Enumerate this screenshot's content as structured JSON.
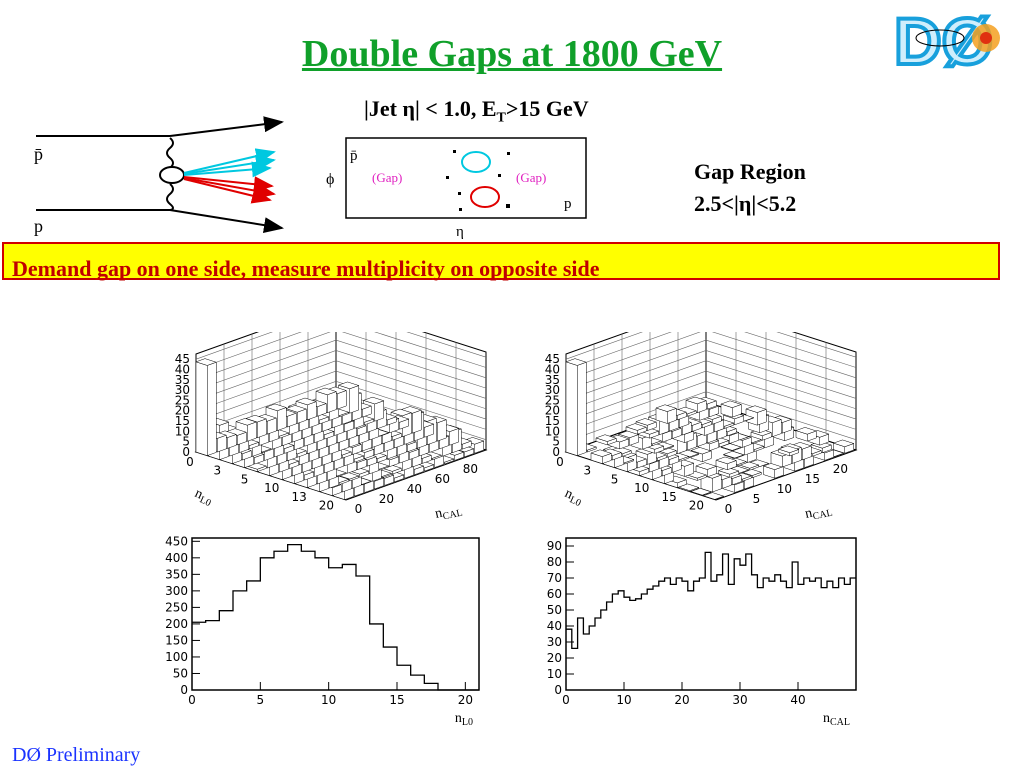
{
  "title": "Double Gaps at 1800 GeV",
  "subtitle": {
    "pre": "|Jet ",
    "eta": "η",
    "mid": "| < 1.0, E",
    "sub": "T",
    "post": ">15 GeV"
  },
  "gap_region": {
    "line1": "Gap Region",
    "line2": "2.5<|η|<5.2"
  },
  "banner": "Demand gap on one side,  measure multiplicity on opposite side",
  "preliminary": "DØ Preliminary",
  "logo": "DØ",
  "feynman": {
    "pbar": "p̄",
    "p": "p"
  },
  "phi_eta": {
    "phi": "ϕ",
    "eta": "η",
    "pbar": "p̄",
    "p": "p",
    "gap_left": "(Gap)",
    "gap_right": "(Gap)",
    "jet_top_color": "#00c8e0",
    "jet_bottom_color": "#e00000"
  },
  "colors": {
    "title": "#10a02a",
    "banner_bg": "#ffff00",
    "banner_border": "#d00000",
    "banner_text": "#c00000",
    "preliminary": "#1a33ff",
    "arrow_cyan": "#00c8e0",
    "arrow_red": "#e00000"
  },
  "chart_data": [
    {
      "type": "lego3d",
      "z_ticks": [
        "0",
        "5",
        "10",
        "15",
        "20",
        "25",
        "30",
        "35",
        "40",
        "45"
      ],
      "x_label": "nL0",
      "x_label_sub": "L0",
      "x_label_main": "n",
      "x_ticks": [
        "0",
        "3",
        "5",
        "10",
        "13",
        "20"
      ],
      "y_label_main": "n",
      "y_label_sub": "CAL",
      "y_ticks": [
        "0",
        "20",
        "40",
        "60",
        "80"
      ]
    },
    {
      "type": "lego3d",
      "z_ticks": [
        "0",
        "5",
        "10",
        "15",
        "20",
        "25",
        "30",
        "35",
        "40",
        "45"
      ],
      "x_label_main": "n",
      "x_label_sub": "L0",
      "x_ticks": [
        "0",
        "3",
        "5",
        "10",
        "15",
        "20"
      ],
      "y_label_main": "n",
      "y_label_sub": "CAL",
      "y_ticks": [
        "0",
        "5",
        "10",
        "15",
        "20"
      ]
    },
    {
      "type": "histogram",
      "x_label_main": "n",
      "x_label_sub": "L0",
      "xlim": [
        0,
        21
      ],
      "ylim": [
        0,
        460
      ],
      "x_ticks": [
        0,
        5,
        10,
        15,
        20
      ],
      "y_ticks": [
        0,
        50,
        100,
        150,
        200,
        250,
        300,
        350,
        400,
        450
      ],
      "bin_width": 1,
      "values": [
        205,
        210,
        240,
        300,
        330,
        400,
        420,
        440,
        420,
        400,
        370,
        380,
        345,
        200,
        130,
        75,
        45,
        20,
        0,
        0,
        0
      ]
    },
    {
      "type": "histogram",
      "x_label_main": "n",
      "x_label_sub": "CAL",
      "xlim": [
        0,
        50
      ],
      "ylim": [
        0,
        95
      ],
      "x_ticks": [
        0,
        10,
        20,
        30,
        40
      ],
      "y_ticks": [
        0,
        10,
        20,
        30,
        40,
        50,
        60,
        70,
        80,
        90
      ],
      "bin_width": 1,
      "values": [
        38,
        26,
        45,
        35,
        40,
        45,
        50,
        55,
        60,
        62,
        58,
        56,
        57,
        60,
        63,
        65,
        68,
        70,
        66,
        70,
        68,
        62,
        68,
        70,
        86,
        68,
        72,
        85,
        66,
        82,
        78,
        85,
        72,
        64,
        70,
        68,
        72,
        68,
        64,
        80,
        66,
        70,
        68,
        70,
        64,
        68,
        64,
        70,
        66,
        70
      ]
    }
  ]
}
